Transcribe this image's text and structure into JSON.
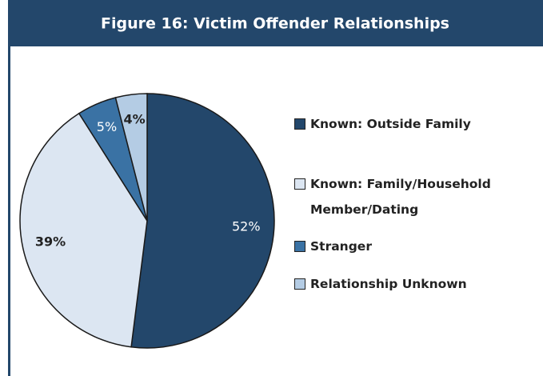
{
  "chart_data": {
    "type": "pie",
    "title": "Figure 16: Victim Offender Relationships",
    "categories": [
      "Known: Outside Family",
      "Known: Family/Household Member/Dating",
      "Stranger",
      "Relationship Unknown"
    ],
    "values": [
      52,
      39,
      5,
      4
    ],
    "value_labels": [
      "52%",
      "39%",
      "5%",
      "4%"
    ],
    "colors": [
      "#23476b",
      "#dce6f2",
      "#3a72a4",
      "#b4cce4"
    ]
  }
}
